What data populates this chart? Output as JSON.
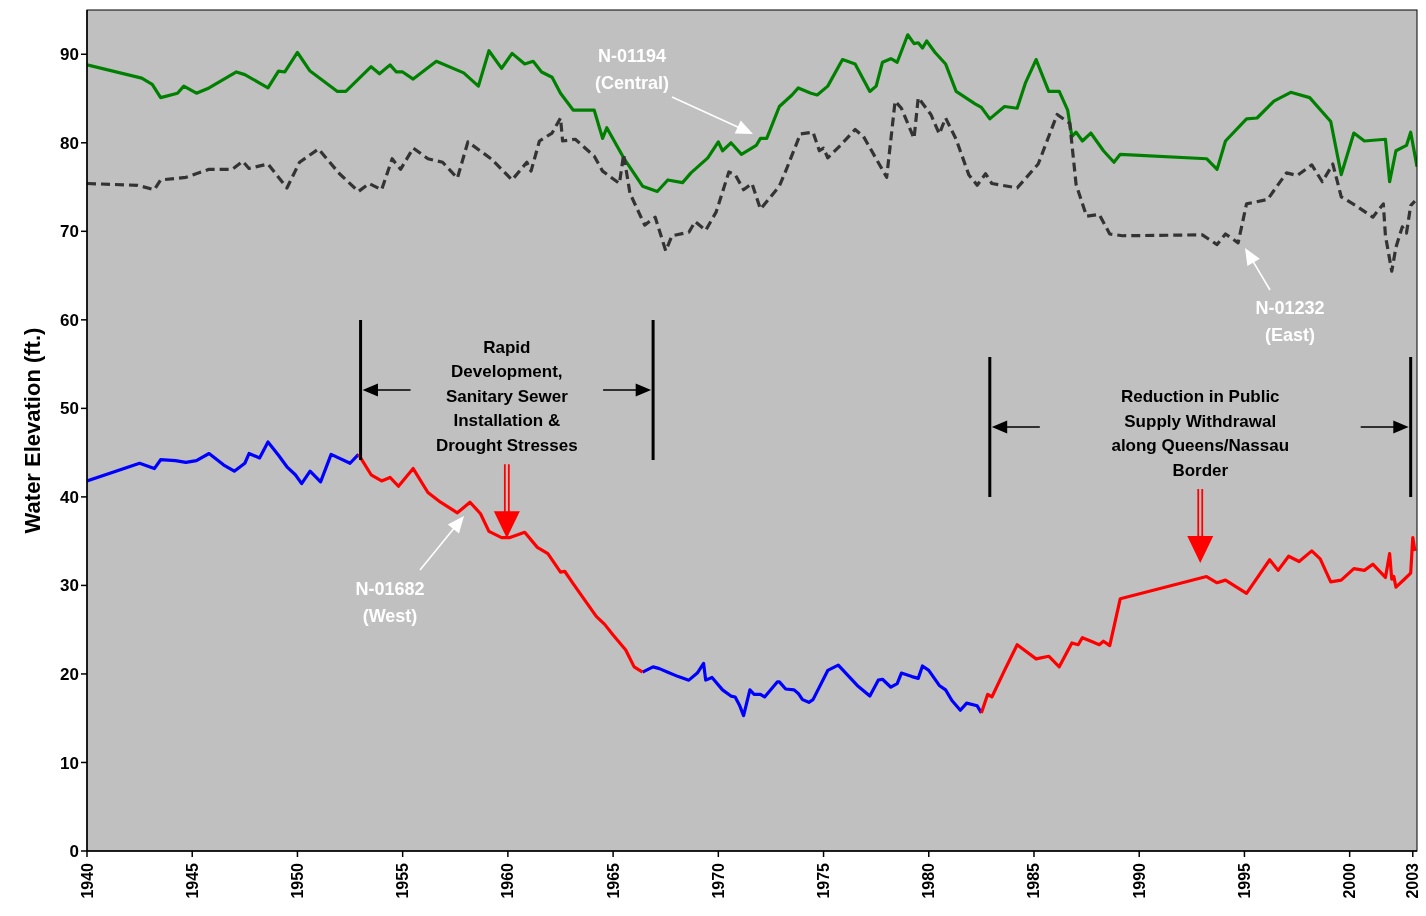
{
  "chart_data": {
    "type": "line",
    "ylabel": "Water Elevation (ft.)",
    "xlim": [
      1940,
      2003.2
    ],
    "xticks": [
      1940,
      1945,
      1950,
      1955,
      1960,
      1965,
      1970,
      1975,
      1980,
      1985,
      1990,
      1995,
      2000,
      2003
    ],
    "ylim": [
      0,
      95
    ],
    "yticks": [
      0,
      10,
      20,
      30,
      40,
      50,
      60,
      70,
      80,
      90
    ],
    "grid": false,
    "series": [
      {
        "color": "#008000",
        "line_style": "solid",
        "x": [
          1940,
          1942.6,
          1943.1,
          1943.5,
          1944.3,
          1944.6,
          1945.2,
          1945.8,
          1947.1,
          1947.5,
          1948.6,
          1949.1,
          1949.4,
          1950.0,
          1950.6,
          1951.9,
          1952.3,
          1953.5,
          1953.9,
          1954.4,
          1954.7,
          1955.0,
          1955.5,
          1956.6,
          1957.9,
          1958.6,
          1959.1,
          1959.7,
          1960.2,
          1960.8,
          1961.2,
          1961.6,
          1962.1,
          1962.5,
          1963.1,
          1964.1,
          1964.5,
          1964.7,
          1965.5,
          1966.4,
          1967.1,
          1967.6,
          1968.3,
          1968.7,
          1969.5,
          1970.0,
          1970.2,
          1970.6,
          1971.1,
          1971.8,
          1972.0,
          1972.3,
          1972.9,
          1973.5,
          1973.8,
          1974.4,
          1974.7,
          1975.2,
          1975.9,
          1976.5,
          1977.2,
          1977.5,
          1977.8,
          1978.2,
          1978.5,
          1979.0,
          1979.3,
          1979.5,
          1979.7,
          1979.9,
          1980.3,
          1980.8,
          1981.3,
          1982.2,
          1982.5,
          1982.9,
          1983.6,
          1984.2,
          1984.6,
          1985.1,
          1985.7,
          1986.2,
          1986.6,
          1986.8,
          1987.0,
          1987.3,
          1987.7,
          1988.3,
          1988.8,
          1989.1,
          1993.2,
          1993.7,
          1994.1,
          1995.1,
          1995.6,
          1996.4,
          1997.2,
          1998.1,
          1999.1,
          1999.6,
          2000.2,
          2000.7,
          2001.7,
          2001.9,
          2002.2,
          2002.7,
          2002.9,
          2003.2
        ],
        "values": [
          88.8,
          87.3,
          86.6,
          85.1,
          85.6,
          86.4,
          85.6,
          86.2,
          88.0,
          87.7,
          86.2,
          88.1,
          88.0,
          90.2,
          88.1,
          85.8,
          85.8,
          88.6,
          87.8,
          88.8,
          88.0,
          88.0,
          87.2,
          89.2,
          87.9,
          86.4,
          90.4,
          88.4,
          90.1,
          88.9,
          89.2,
          88.0,
          87.4,
          85.6,
          83.7,
          83.7,
          80.5,
          81.7,
          78.3,
          75.1,
          74.5,
          75.8,
          75.5,
          76.6,
          78.3,
          80.1,
          79.1,
          80.0,
          78.7,
          79.7,
          80.5,
          80.5,
          84.1,
          85.4,
          86.2,
          85.6,
          85.4,
          86.4,
          89.4,
          88.9,
          85.8,
          86.4,
          89.1,
          89.5,
          89.1,
          92.2,
          91.2,
          91.3,
          90.7,
          91.5,
          90.2,
          88.9,
          85.8,
          84.4,
          84.0,
          82.7,
          84.1,
          83.9,
          86.8,
          89.4,
          85.8,
          85.8,
          83.7,
          80.7,
          81.2,
          80.2,
          81.1,
          79.1,
          77.8,
          78.7,
          78.2,
          77.0,
          80.2,
          82.7,
          82.8,
          84.7,
          85.7,
          85.1,
          82.4,
          76.4,
          81.1,
          80.2,
          80.4,
          75.6,
          79.1,
          79.7,
          81.2,
          77.3
        ]
      },
      {
        "color": "#333333",
        "line_style": "dashed",
        "x": [
          1940,
          1942.4,
          1943.2,
          1943.5,
          1944.7,
          1945.8,
          1946.9,
          1947.4,
          1947.7,
          1948.6,
          1949.5,
          1950.1,
          1951.0,
          1952.0,
          1952.9,
          1953.4,
          1954.0,
          1954.5,
          1954.9,
          1955.5,
          1956.2,
          1956.9,
          1957.6,
          1958.1,
          1959.2,
          1960.2,
          1960.9,
          1961.1,
          1961.5,
          1962.1,
          1962.5,
          1962.6,
          1963.2,
          1964.1,
          1964.5,
          1965.3,
          1965.5,
          1965.8,
          1966.5,
          1967.0,
          1967.5,
          1967.8,
          1968.6,
          1968.9,
          1969.4,
          1969.9,
          1970.5,
          1970.8,
          1971.2,
          1971.6,
          1972.0,
          1972.9,
          1973.2,
          1973.9,
          1974.5,
          1974.8,
          1975.0,
          1975.2,
          1975.8,
          1976.5,
          1976.9,
          1978.0,
          1978.4,
          1978.7,
          1979.3,
          1979.5,
          1980.1,
          1980.5,
          1980.8,
          1981.3,
          1981.9,
          1982.3,
          1982.7,
          1983.0,
          1984.2,
          1985.2,
          1986.1,
          1986.7,
          1987.0,
          1987.5,
          1988.1,
          1988.6,
          1989.2,
          1993.0,
          1993.7,
          1994.1,
          1994.7,
          1995.1,
          1996.1,
          1997.0,
          1997.5,
          1998.2,
          1998.7,
          1999.2,
          1999.6,
          2000.3,
          2001.1,
          2001.6,
          2001.7,
          2002.0,
          2002.2,
          2002.5,
          2002.7,
          2002.9,
          2003.1
        ],
        "values": [
          75.4,
          75.2,
          74.7,
          75.8,
          76.1,
          77.0,
          77.0,
          77.9,
          77.1,
          77.6,
          74.9,
          77.8,
          79.3,
          76.5,
          74.5,
          75.4,
          74.7,
          78.2,
          77.0,
          79.4,
          78.2,
          77.8,
          76.0,
          80.1,
          78.2,
          75.8,
          77.8,
          76.8,
          80.2,
          81.1,
          82.8,
          80.2,
          80.4,
          78.5,
          76.8,
          75.4,
          78.7,
          74.3,
          70.7,
          71.6,
          67.8,
          69.5,
          69.9,
          71.1,
          70.1,
          72.2,
          76.7,
          76.4,
          74.7,
          75.4,
          72.5,
          75.1,
          76.8,
          81.0,
          81.2,
          79.1,
          79.4,
          78.3,
          79.7,
          81.5,
          80.7,
          76.1,
          84.7,
          83.9,
          80.5,
          85.1,
          83.2,
          81.0,
          82.8,
          80.4,
          76.4,
          75.2,
          76.5,
          75.4,
          74.9,
          77.6,
          83.2,
          82.2,
          75.3,
          71.7,
          71.9,
          69.7,
          69.5,
          69.6,
          68.5,
          69.7,
          68.7,
          73.1,
          73.6,
          76.6,
          76.3,
          77.5,
          75.6,
          77.6,
          73.9,
          72.9,
          71.6,
          73.1,
          69.5,
          65.5,
          68.2,
          70.5,
          69.8,
          72.9,
          73.4
        ]
      },
      {
        "color": "#0000ff",
        "line_style": "solid",
        "x": [
          1940,
          1942.5,
          1943.2,
          1943.5,
          1944.2,
          1944.7,
          1945.2,
          1945.8,
          1946.5,
          1947.0,
          1947.5,
          1947.7,
          1948.2,
          1948.6,
          1949.1,
          1949.5,
          1949.9,
          1950.2,
          1950.6,
          1951.1,
          1951.6,
          1952.5,
          1952.9,
          1960.0,
          1966.4,
          1966.9,
          1967.2,
          1967.6,
          1968.1,
          1968.6,
          1969.0,
          1969.3,
          1969.4,
          1969.7,
          1970.2,
          1970.6,
          1970.8,
          1971.0,
          1971.2,
          1971.5,
          1971.7,
          1972.0,
          1972.2,
          1972.8,
          1972.9,
          1973.2,
          1973.6,
          1973.8,
          1974.0,
          1974.3,
          1974.5,
          1975.2,
          1975.7,
          1976.6,
          1977.2,
          1977.6,
          1977.8,
          1978.2,
          1978.5,
          1978.7,
          1979.2,
          1979.5,
          1979.7,
          1980.0,
          1980.5,
          1980.8,
          1981.1,
          1981.5,
          1981.8,
          1982.3,
          1982.5
        ],
        "values": [
          41.8,
          43.8,
          43.2,
          44.2,
          44.1,
          43.9,
          44.1,
          44.9,
          43.6,
          42.9,
          43.8,
          44.9,
          44.4,
          46.2,
          44.7,
          43.4,
          42.5,
          41.5,
          42.9,
          41.7,
          44.8,
          43.8,
          44.8,
          null,
          20.2,
          20.8,
          20.6,
          20.2,
          19.7,
          19.3,
          20.1,
          21.2,
          19.3,
          19.6,
          18.2,
          17.5,
          17.4,
          16.5,
          15.3,
          18.2,
          17.7,
          17.7,
          17.4,
          19.1,
          19.1,
          18.3,
          18.2,
          17.8,
          17.1,
          16.8,
          17.1,
          20.4,
          21.0,
          18.7,
          17.5,
          19.3,
          19.4,
          18.5,
          18.9,
          20.1,
          19.7,
          19.5,
          20.9,
          20.4,
          18.7,
          18.2,
          17.0,
          15.9,
          16.7,
          16.4,
          15.6
        ]
      },
      {
        "color": "#ff0000",
        "line_style": "solid",
        "x": [
          1952.9,
          1953.5,
          1954.0,
          1954.4,
          1954.8,
          1955.5,
          1956.2,
          1956.8,
          1957.6,
          1958.2,
          1958.7,
          1959.1,
          1959.7,
          1960.1,
          1960.8,
          1961.4,
          1961.9,
          1962.5,
          1962.7,
          1963.1,
          1964.2,
          1964.6,
          1965.0,
          1965.6,
          1966.0,
          1966.4,
          1975.0,
          1982.5,
          1982.8,
          1983.0,
          1983.6,
          1984.2,
          1985.1,
          1985.7,
          1986.2,
          1986.8,
          1987.1,
          1987.3,
          1987.8,
          1988.1,
          1988.3,
          1988.6,
          1989.1,
          1993.2,
          1993.7,
          1994.1,
          1995.1,
          1996.2,
          1996.6,
          1997.1,
          1997.6,
          1998.2,
          1998.6,
          1999.1,
          1999.6,
          2000.2,
          2000.7,
          2001.1,
          2001.7,
          2001.9,
          2002.0,
          2002.1,
          2002.2,
          2002.6,
          2002.9,
          2003.0,
          2003.1
        ],
        "values": [
          44.8,
          42.5,
          41.8,
          42.2,
          41.2,
          43.2,
          40.5,
          39.4,
          38.2,
          39.4,
          38.1,
          36.1,
          35.4,
          35.4,
          36.0,
          34.3,
          33.6,
          31.5,
          31.6,
          30.2,
          26.5,
          25.6,
          24.4,
          22.7,
          20.8,
          20.2,
          null,
          15.6,
          17.7,
          17.4,
          20.4,
          23.3,
          21.7,
          22.0,
          20.8,
          23.5,
          23.3,
          24.1,
          23.6,
          23.3,
          23.7,
          23.2,
          28.5,
          31.0,
          30.3,
          30.6,
          29.1,
          32.9,
          31.7,
          33.3,
          32.7,
          33.9,
          33.0,
          30.4,
          30.6,
          31.9,
          31.7,
          32.4,
          30.9,
          33.6,
          30.7,
          31.0,
          29.8,
          30.7,
          31.4,
          35.4,
          33.9
        ]
      }
    ],
    "annotations": [
      "N-01194 (Central)",
      "N-01232 (East)",
      "N-01682 (West)",
      "Rapid Development, Sanitary Sewer Installation & Drought Stresses",
      "Reduction in Public Supply Withdrawal along Queens/Nassau Border"
    ],
    "ref_lines": [
      {
        "axis": "x",
        "value": 1953
      },
      {
        "axis": "x",
        "value": 1966.9
      },
      {
        "axis": "x",
        "value": 1982.9
      },
      {
        "axis": "x",
        "value": 2002.9
      }
    ]
  }
}
